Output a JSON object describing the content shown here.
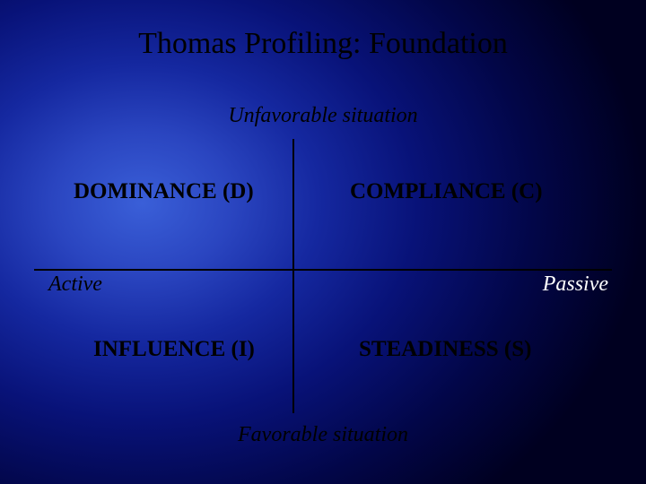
{
  "title": "Thomas Profiling: Foundation",
  "axes": {
    "top": "Unfavorable situation",
    "bottom": "Favorable situation",
    "left": "Active",
    "right": "Passive"
  },
  "quadrants": {
    "top_left": "DOMINANCE (D)",
    "top_right": "COMPLIANCE (C)",
    "bottom_left": "INFLUENCE (I)",
    "bottom_right": "STEADINESS (S)"
  },
  "style": {
    "type": "quadrant-diagram",
    "background_gradient": {
      "center": "#3a5fd8",
      "mid": "#1528a0",
      "outer": "#000020"
    },
    "title_color": "#000000",
    "title_fontsize": 34,
    "axis_font_style": "italic",
    "axis_fontsize": 24,
    "axis_color_default": "#000000",
    "axis_right_color": "#ffffff",
    "quadrant_fontsize": 25,
    "quadrant_fontweight": "bold",
    "quadrant_color": "#000000",
    "line_color": "#000000",
    "line_width": 2,
    "font_family": "Times New Roman"
  }
}
